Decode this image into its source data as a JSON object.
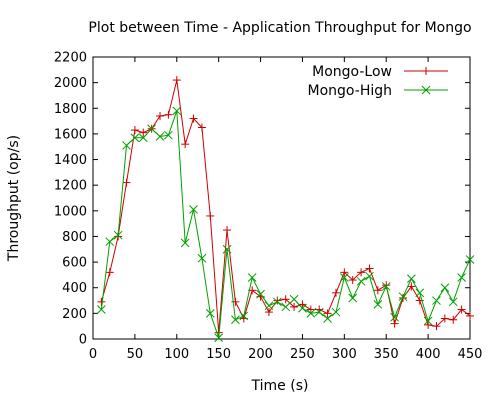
{
  "chart_data": {
    "type": "line",
    "title": "Plot between Time - Application Throughput for Mongo",
    "xlabel": "Time (s)",
    "ylabel": "Throughput (op/s)",
    "xlim": [
      0,
      450
    ],
    "ylim": [
      0,
      2200
    ],
    "xticks": [
      0,
      50,
      100,
      150,
      200,
      250,
      300,
      350,
      400,
      450
    ],
    "yticks": [
      0,
      200,
      400,
      600,
      800,
      1000,
      1200,
      1400,
      1600,
      1800,
      2000,
      2200
    ],
    "grid": false,
    "legend_position": "top-right",
    "series": [
      {
        "name": "Mongo-Low",
        "color": "#cc0000",
        "marker": "plus",
        "x": [
          10,
          20,
          30,
          40,
          50,
          60,
          70,
          80,
          90,
          100,
          110,
          120,
          130,
          140,
          150,
          160,
          170,
          180,
          190,
          200,
          210,
          220,
          230,
          240,
          250,
          260,
          270,
          280,
          290,
          300,
          310,
          320,
          330,
          340,
          350,
          360,
          370,
          380,
          390,
          400,
          410,
          420,
          430,
          440,
          450
        ],
        "y": [
          290,
          520,
          800,
          1220,
          1630,
          1610,
          1640,
          1740,
          1750,
          2020,
          1520,
          1720,
          1650,
          960,
          50,
          850,
          290,
          160,
          380,
          330,
          210,
          300,
          310,
          250,
          270,
          230,
          230,
          200,
          360,
          520,
          460,
          520,
          550,
          380,
          420,
          120,
          320,
          410,
          300,
          110,
          100,
          160,
          150,
          230,
          180
        ]
      },
      {
        "name": "Mongo-High",
        "color": "#00a000",
        "marker": "x",
        "x": [
          10,
          20,
          30,
          40,
          50,
          60,
          70,
          80,
          90,
          100,
          110,
          120,
          130,
          140,
          150,
          160,
          170,
          180,
          190,
          200,
          210,
          220,
          230,
          240,
          250,
          260,
          270,
          280,
          290,
          300,
          310,
          320,
          330,
          340,
          350,
          360,
          370,
          380,
          390,
          400,
          410,
          420,
          430,
          440,
          450
        ],
        "y": [
          230,
          760,
          810,
          1510,
          1570,
          1570,
          1640,
          1580,
          1590,
          1780,
          750,
          1010,
          630,
          200,
          10,
          700,
          150,
          180,
          480,
          350,
          260,
          290,
          250,
          310,
          240,
          200,
          210,
          160,
          210,
          480,
          320,
          450,
          490,
          270,
          410,
          170,
          330,
          470,
          360,
          140,
          300,
          400,
          290,
          480,
          620
        ]
      }
    ]
  }
}
